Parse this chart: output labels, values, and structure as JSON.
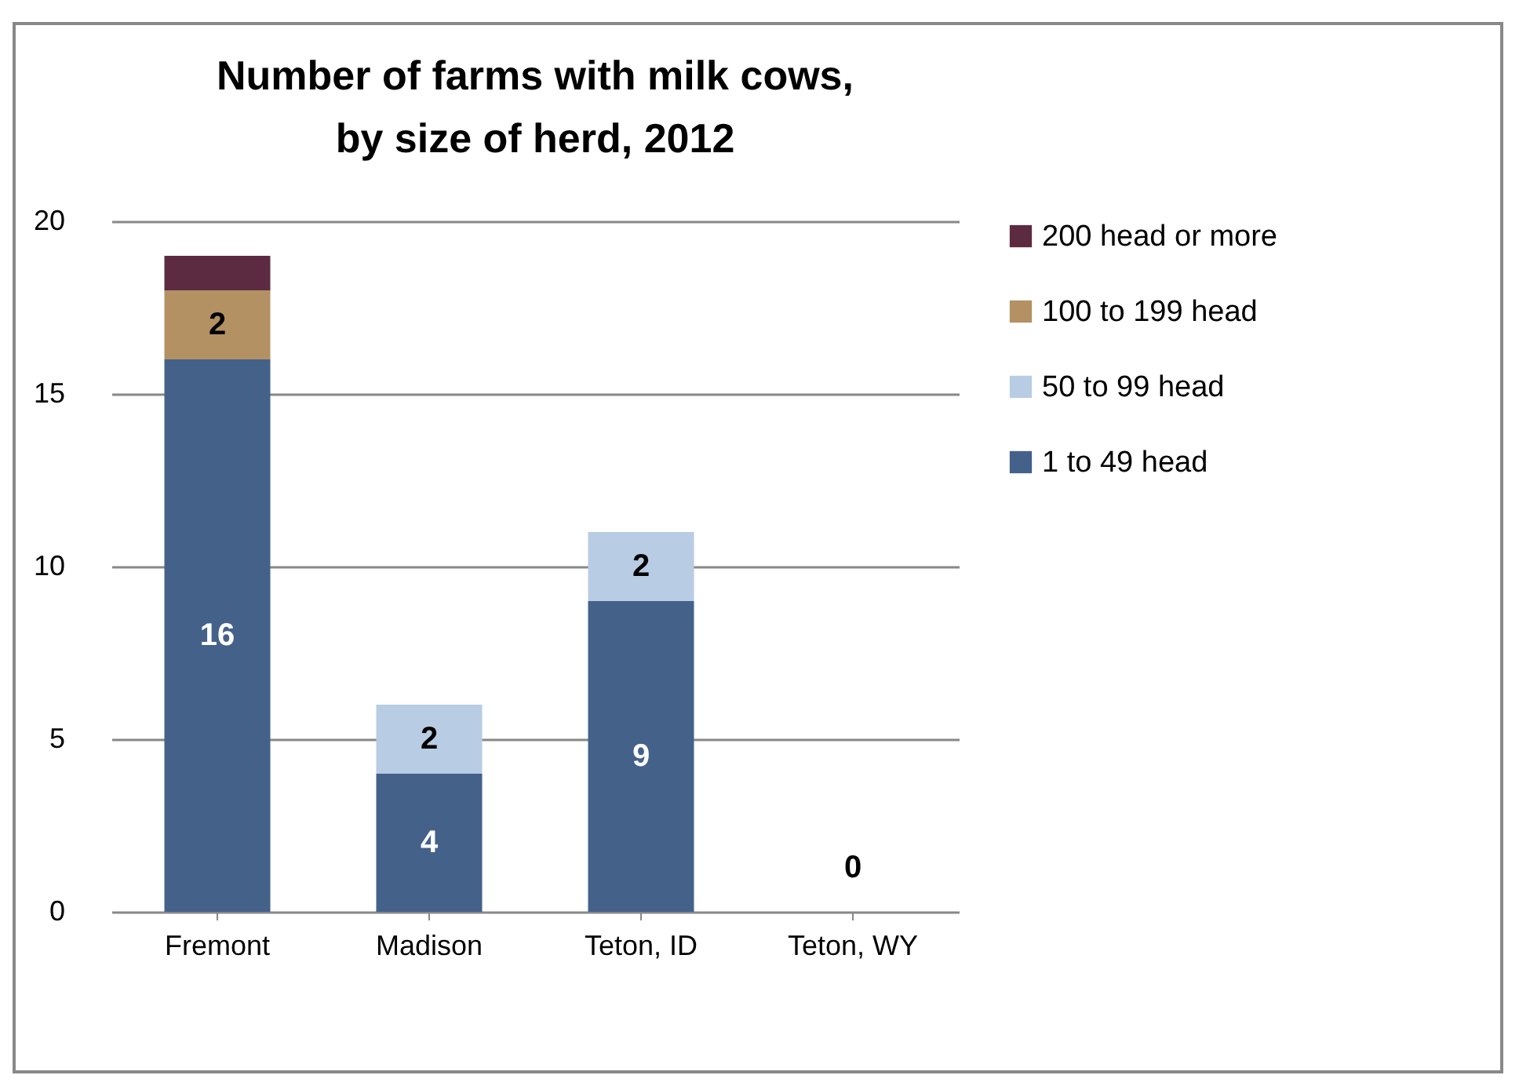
{
  "chart_data": {
    "type": "bar",
    "title": "Number of farms with milk cows, by size of herd, 2012",
    "categories": [
      "Fremont",
      "Madison",
      "Teton, ID",
      "Teton, WY"
    ],
    "stacked": true,
    "series": [
      {
        "name": "1 to 49 head",
        "color": "#44618a",
        "values": [
          16,
          4,
          9,
          0
        ],
        "value_labels": [
          "16",
          "4",
          "9",
          "0"
        ]
      },
      {
        "name": "50 to 99 head",
        "color": "#b8cce4",
        "values": [
          0,
          2,
          2,
          0
        ],
        "value_labels": [
          null,
          "2",
          "2",
          null
        ]
      },
      {
        "name": "100 to 199 head",
        "color": "#b39163",
        "values": [
          2,
          0,
          0,
          0
        ],
        "value_labels": [
          "2",
          null,
          null,
          null
        ]
      },
      {
        "name": "200 head or more",
        "color": "#5c2b42",
        "values": [
          1,
          0,
          0,
          0
        ],
        "value_labels": [
          null,
          null,
          null,
          null
        ]
      }
    ],
    "ylim": [
      0,
      20
    ],
    "yticks": [
      0,
      5,
      10,
      15,
      20
    ],
    "grid": "y",
    "legend": "right"
  }
}
